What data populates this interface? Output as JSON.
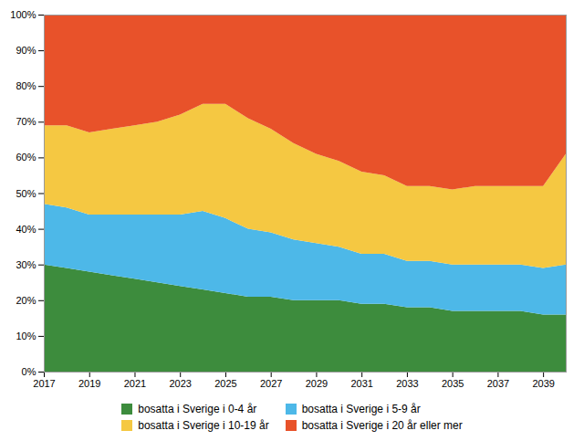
{
  "chart_data": {
    "type": "area",
    "stacked": true,
    "x": [
      2017,
      2018,
      2019,
      2020,
      2021,
      2022,
      2023,
      2024,
      2025,
      2026,
      2027,
      2028,
      2029,
      2030,
      2031,
      2032,
      2033,
      2034,
      2035,
      2036,
      2037,
      2038,
      2039,
      2040
    ],
    "series": [
      {
        "name": "bosatta i Sverige i 0-4 år",
        "color": "#3d8c3d",
        "values": [
          30,
          29,
          28,
          27,
          26,
          25,
          24,
          23,
          22,
          21,
          21,
          20,
          20,
          20,
          19,
          19,
          18,
          18,
          17,
          17,
          17,
          17,
          16,
          16
        ]
      },
      {
        "name": "bosatta i Sverige i 5-9 år",
        "color": "#4db8e8",
        "values": [
          17,
          17,
          16,
          17,
          18,
          19,
          20,
          22,
          21,
          19,
          18,
          17,
          16,
          15,
          14,
          14,
          13,
          13,
          13,
          13,
          13,
          13,
          13,
          14
        ]
      },
      {
        "name": "bosatta i Sverige i 10-19 år",
        "color": "#f5c842",
        "values": [
          22,
          23,
          23,
          24,
          25,
          26,
          28,
          30,
          32,
          31,
          29,
          27,
          25,
          24,
          23,
          22,
          21,
          21,
          21,
          22,
          22,
          22,
          23,
          31
        ]
      },
      {
        "name": "bosatta i Sverige i 20 år eller mer",
        "color": "#e8522a",
        "values": [
          31,
          31,
          33,
          32,
          31,
          30,
          28,
          25,
          25,
          29,
          32,
          36,
          39,
          41,
          44,
          45,
          48,
          48,
          49,
          48,
          48,
          48,
          48,
          39
        ]
      }
    ],
    "xlim": [
      2017,
      2040
    ],
    "xticks": [
      2017,
      2019,
      2021,
      2023,
      2025,
      2027,
      2029,
      2031,
      2033,
      2035,
      2037,
      2039
    ],
    "ylim": [
      0,
      100
    ],
    "yticks": [
      {
        "value": 0,
        "label": "0%"
      },
      {
        "value": 10,
        "label": "10%"
      },
      {
        "value": 20,
        "label": "20%"
      },
      {
        "value": 30,
        "label": "30%"
      },
      {
        "value": 40,
        "label": "40%"
      },
      {
        "value": 50,
        "label": "50%"
      },
      {
        "value": 60,
        "label": "60%"
      },
      {
        "value": 70,
        "label": "70%"
      },
      {
        "value": 80,
        "label": "80%"
      },
      {
        "value": 90,
        "label": "90%"
      },
      {
        "value": 100,
        "label": "100%"
      }
    ],
    "grid": true,
    "legend": "bottom"
  }
}
